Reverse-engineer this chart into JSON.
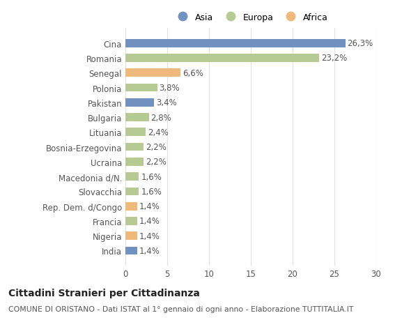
{
  "countries": [
    "Cina",
    "Romania",
    "Senegal",
    "Polonia",
    "Pakistan",
    "Bulgaria",
    "Lituania",
    "Bosnia-Erzegovina",
    "Ucraina",
    "Macedonia d/N.",
    "Slovacchia",
    "Rep. Dem. d/Congo",
    "Francia",
    "Nigeria",
    "India"
  ],
  "values": [
    26.3,
    23.2,
    6.6,
    3.8,
    3.4,
    2.8,
    2.4,
    2.2,
    2.2,
    1.6,
    1.6,
    1.4,
    1.4,
    1.4,
    1.4
  ],
  "labels": [
    "26,3%",
    "23,2%",
    "6,6%",
    "3,8%",
    "3,4%",
    "2,8%",
    "2,4%",
    "2,2%",
    "2,2%",
    "1,6%",
    "1,6%",
    "1,4%",
    "1,4%",
    "1,4%",
    "1,4%"
  ],
  "continents": [
    "Asia",
    "Europa",
    "Africa",
    "Europa",
    "Asia",
    "Europa",
    "Europa",
    "Europa",
    "Europa",
    "Europa",
    "Europa",
    "Africa",
    "Europa",
    "Africa",
    "Asia"
  ],
  "colors": {
    "Asia": "#7191c0",
    "Europa": "#b5cb93",
    "Africa": "#f0b97c"
  },
  "xlim": [
    0,
    30
  ],
  "xticks": [
    0,
    5,
    10,
    15,
    20,
    25,
    30
  ],
  "title": "Cittadini Stranieri per Cittadinanza",
  "subtitle": "COMUNE DI ORISTANO - Dati ISTAT al 1° gennaio di ogni anno - Elaborazione TUTTITALIA.IT",
  "bg_color": "#ffffff",
  "plot_bg_color": "#ffffff",
  "grid_color": "#e0e0e0",
  "bar_height": 0.55,
  "label_fontsize": 8.5,
  "ytick_fontsize": 8.5,
  "xtick_fontsize": 8.5,
  "title_fontsize": 10,
  "subtitle_fontsize": 7.8,
  "legend_fontsize": 9
}
